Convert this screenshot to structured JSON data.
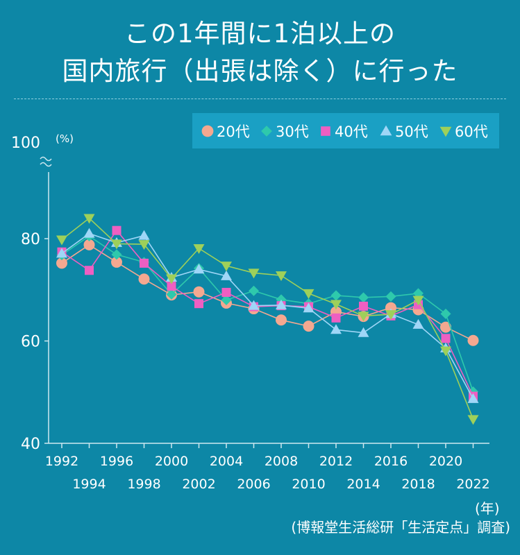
{
  "title": {
    "line1": "この1年間に1泊以上の",
    "line2": "国内旅行（出張は除く）に行った"
  },
  "colors": {
    "background": "#0d87a6",
    "legend_box": "#1aa0c4",
    "axis": "#cfe8f0",
    "20代": "#f4a890",
    "30代": "#2ec9ac",
    "40代": "#ee5fc2",
    "50代": "#9fd6f7",
    "60代": "#9ed05a"
  },
  "chart_data": {
    "type": "line",
    "title": "この1年間に1泊以上の国内旅行（出張は除く）に行った",
    "ylabel": "(%)",
    "xlabel": "(年)",
    "ylim": [
      40,
      100
    ],
    "y_ticks": [
      "40",
      "60",
      "80",
      "100"
    ],
    "x_ticks_row1": [
      "1992",
      "1996",
      "2000",
      "2004",
      "2008",
      "2012",
      "2016",
      "2020"
    ],
    "x_ticks_row2": [
      "1994",
      "1998",
      "2002",
      "2006",
      "2010",
      "2014",
      "2018",
      "2022"
    ],
    "x": [
      1992,
      1994,
      1996,
      1998,
      2000,
      2002,
      2004,
      2006,
      2008,
      2010,
      2012,
      2014,
      2016,
      2018,
      2020,
      2022
    ],
    "legend": [
      "20代",
      "30代",
      "40代",
      "50代",
      "60代"
    ],
    "series": [
      {
        "name": "20代",
        "marker": "circle",
        "points": [
          [
            1992,
            75.2
          ],
          [
            1994,
            78.8
          ],
          [
            1996,
            75.4
          ],
          [
            1998,
            72.1
          ],
          [
            2000,
            69.0
          ],
          [
            2002,
            69.6
          ],
          [
            2004,
            67.4
          ],
          [
            2006,
            66.3
          ],
          [
            2008,
            64.1
          ],
          [
            2010,
            62.9
          ],
          [
            2012,
            65.7
          ],
          [
            2014,
            64.8
          ],
          [
            2016,
            66.5
          ],
          [
            2018,
            66.1
          ],
          [
            2020,
            62.7
          ],
          [
            2022,
            60.1
          ]
        ]
      },
      {
        "name": "30代",
        "marker": "diamond",
        "points": [
          [
            1992,
            76.8
          ],
          [
            1994,
            80.5
          ],
          [
            1996,
            76.9
          ],
          [
            1998,
            75.4
          ],
          [
            2000,
            69.1
          ],
          [
            2002,
            74.2
          ],
          [
            2004,
            68.0
          ],
          [
            2006,
            69.8
          ],
          [
            2008,
            68.1
          ],
          [
            2010,
            67.3
          ],
          [
            2012,
            68.9
          ],
          [
            2014,
            68.5
          ],
          [
            2016,
            68.7
          ],
          [
            2018,
            69.3
          ],
          [
            2020,
            65.3
          ],
          [
            2022,
            50.1
          ]
        ]
      },
      {
        "name": "40代",
        "marker": "square",
        "points": [
          [
            1992,
            77.4
          ],
          [
            1994,
            73.8
          ],
          [
            1996,
            81.6
          ],
          [
            1998,
            75.2
          ],
          [
            2000,
            70.7
          ],
          [
            2002,
            67.3
          ],
          [
            2004,
            69.5
          ],
          [
            2006,
            66.7
          ],
          [
            2008,
            66.9
          ],
          [
            2010,
            66.7
          ],
          [
            2012,
            64.5
          ],
          [
            2014,
            66.8
          ],
          [
            2016,
            64.9
          ],
          [
            2018,
            67.1
          ],
          [
            2020,
            60.5
          ],
          [
            2022,
            49.2
          ]
        ]
      },
      {
        "name": "50代",
        "marker": "triangle-up",
        "points": [
          [
            1992,
            77.1
          ],
          [
            1994,
            81.0
          ],
          [
            1996,
            79.2
          ],
          [
            1998,
            80.6
          ],
          [
            2000,
            72.4
          ],
          [
            2002,
            74.0
          ],
          [
            2004,
            72.7
          ],
          [
            2006,
            66.9
          ],
          [
            2008,
            67.0
          ],
          [
            2010,
            66.4
          ],
          [
            2012,
            62.2
          ],
          [
            2014,
            61.6
          ],
          [
            2016,
            65.3
          ],
          [
            2018,
            63.2
          ],
          [
            2020,
            58.6
          ],
          [
            2022,
            48.7
          ]
        ]
      },
      {
        "name": "60代",
        "marker": "triangle-down",
        "points": [
          [
            1992,
            79.8
          ],
          [
            1994,
            84.0
          ],
          [
            1996,
            79.0
          ],
          [
            1998,
            78.9
          ],
          [
            2000,
            72.2
          ],
          [
            2002,
            78.1
          ],
          [
            2004,
            74.7
          ],
          [
            2006,
            73.3
          ],
          [
            2008,
            72.8
          ],
          [
            2010,
            69.3
          ],
          [
            2012,
            67.2
          ],
          [
            2014,
            64.9
          ],
          [
            2016,
            65.2
          ],
          [
            2018,
            68.0
          ],
          [
            2020,
            58.1
          ],
          [
            2022,
            44.7
          ]
        ]
      }
    ]
  },
  "notes": {
    "year_unit": "(年)",
    "source": "(博報堂生活総研「生活定点」調査)"
  }
}
